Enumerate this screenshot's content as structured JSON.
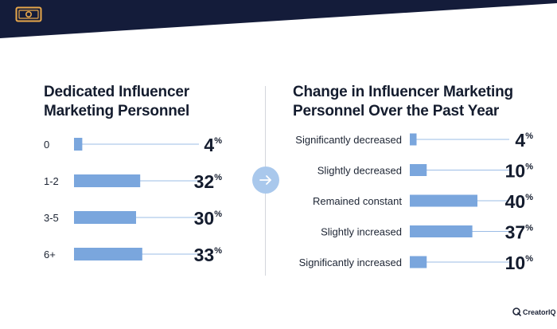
{
  "header": {
    "icon": "money-bill-icon",
    "bar_color": "#141c3a",
    "icon_color": "#e8a74b"
  },
  "colors": {
    "bar": "#7aa6dd",
    "connector": "#9bbce6",
    "arrow_button": "#a9c8ec",
    "divider": "#d3d6dc"
  },
  "chart_data": [
    {
      "type": "bar",
      "orientation": "horizontal",
      "title": "Dedicated Influencer Marketing Personnel",
      "categories": [
        "0",
        "1-2",
        "3-5",
        "6+"
      ],
      "values": [
        4,
        32,
        30,
        33
      ],
      "value_labels": [
        "4",
        "32",
        "30",
        "33"
      ],
      "unit": "%",
      "xlim": [
        0,
        100
      ]
    },
    {
      "type": "bar",
      "orientation": "horizontal",
      "title": "Change in Influencer Marketing Personnel Over the Past Year",
      "categories": [
        "Significantly decreased",
        "Slightly decreased",
        "Remained constant",
        "Slightly increased",
        "Significantly increased"
      ],
      "values": [
        4,
        10,
        40,
        37,
        10
      ],
      "value_labels": [
        "4",
        "10",
        "40",
        "37",
        "10"
      ],
      "unit": "%",
      "xlim": [
        0,
        100
      ]
    }
  ],
  "navigation": {
    "arrow_icon": "arrow-right-icon"
  },
  "brand": {
    "name": "CreatorIQ",
    "icon": "creatoriq-logo-icon"
  }
}
